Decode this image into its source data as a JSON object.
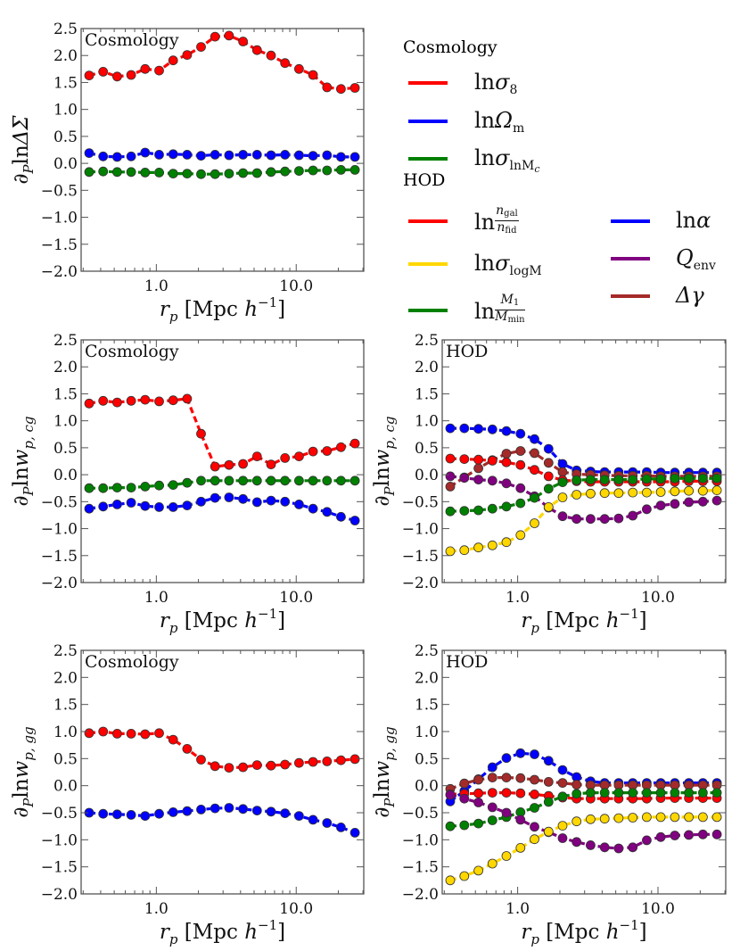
{
  "chart_data": {
    "type": "line",
    "xscale": "log",
    "x": [
      0.331,
      0.417,
      0.525,
      0.661,
      0.832,
      1.047,
      1.318,
      1.66,
      2.089,
      2.63,
      3.311,
      4.169,
      5.248,
      6.607,
      8.318,
      10.47,
      13.18,
      16.6,
      20.89,
      26.3
    ],
    "xlim": [
      0.29,
      30.4
    ],
    "ylim": [
      -2.0,
      2.5
    ],
    "xticks": [
      1.0,
      10.0
    ],
    "xtick_labels": [
      "1.0",
      "10.0"
    ],
    "yticks": [
      -2.0,
      -1.5,
      -1.0,
      -0.5,
      0.0,
      0.5,
      1.0,
      1.5,
      2.0,
      2.5
    ],
    "ytick_labels": [
      "−2.0",
      "−1.5",
      "−1.0",
      "−0.5",
      "0.0",
      "0.5",
      "1.0",
      "1.5",
      "2.0",
      "2.5"
    ],
    "xlabel": {
      "var": "r",
      "sub": "p",
      "unit": " [Mpc ",
      "unit_var": "h",
      "sup": "−1",
      "close": "]"
    },
    "grid": false,
    "legend_placement": "top-right",
    "legend": {
      "cosmology": {
        "title": "Cosmology",
        "items": [
          {
            "prefix": "ln",
            "sym": "σ",
            "sub": "8",
            "color": "#ff0000"
          },
          {
            "prefix": "ln",
            "sym": "Ω",
            "sub": "m",
            "color": "#0000ff"
          },
          {
            "prefix": "ln",
            "sym": "σ",
            "sub": "lnM",
            "subsub": "c",
            "color": "#008000"
          }
        ]
      },
      "hod": {
        "title": "HOD",
        "items": [
          {
            "prefix": "ln",
            "num_sym": "n",
            "num_sub": "gal",
            "den_sym": "n",
            "den_sub": "fid",
            "color": "#ff0000"
          },
          {
            "prefix": "ln",
            "sym": "σ",
            "sub": "logM",
            "color": "#ffd700"
          },
          {
            "prefix": "ln",
            "num_sym": "M",
            "num_sub": "1",
            "den_sym": "M",
            "den_sub": "min",
            "color": "#008000"
          },
          {
            "prefix": "ln",
            "sym": "α",
            "color": "#0000ff"
          },
          {
            "prefix": "",
            "sym": "Q",
            "sub": "env",
            "color": "#800080"
          },
          {
            "prefix": "",
            "sym": "Δγ",
            "color": "#a52a2a"
          }
        ]
      }
    },
    "panels": [
      {
        "title": "Cosmology",
        "ylabel": {
          "d": "∂",
          "sub": "P",
          "ln": "ln",
          "sym": "ΔΣ",
          "symsub": ""
        },
        "series": [
          {
            "name": "ln sigma8",
            "color": "#ff0000",
            "values": [
              1.63,
              1.7,
              1.61,
              1.64,
              1.75,
              1.72,
              1.91,
              2.01,
              2.16,
              2.35,
              2.37,
              2.26,
              2.1,
              2.0,
              1.86,
              1.75,
              1.64,
              1.41,
              1.38,
              1.4
            ]
          },
          {
            "name": "ln Omega_m",
            "color": "#0000ff",
            "values": [
              0.19,
              0.13,
              0.12,
              0.13,
              0.2,
              0.16,
              0.17,
              0.16,
              0.14,
              0.16,
              0.15,
              0.16,
              0.16,
              0.15,
              0.16,
              0.15,
              0.14,
              0.15,
              0.12,
              0.12
            ]
          },
          {
            "name": "ln sigma_lnMc",
            "color": "#008000",
            "values": [
              -0.16,
              -0.15,
              -0.16,
              -0.16,
              -0.17,
              -0.17,
              -0.19,
              -0.19,
              -0.2,
              -0.2,
              -0.19,
              -0.18,
              -0.18,
              -0.16,
              -0.15,
              -0.14,
              -0.13,
              -0.13,
              -0.12,
              -0.12
            ]
          }
        ]
      },
      {
        "title": "Cosmology",
        "ylabel": {
          "d": "∂",
          "sub": "P",
          "ln": "ln",
          "sym": "w",
          "symsub": "p, cg"
        },
        "series": [
          {
            "name": "ln sigma8",
            "color": "#ff0000",
            "values": [
              1.32,
              1.37,
              1.34,
              1.37,
              1.39,
              1.36,
              1.38,
              1.41,
              0.76,
              0.15,
              0.18,
              0.2,
              0.34,
              0.19,
              0.31,
              0.34,
              0.43,
              0.44,
              0.51,
              0.58
            ]
          },
          {
            "name": "ln sigma_lnMc",
            "color": "#008000",
            "values": [
              -0.25,
              -0.25,
              -0.24,
              -0.24,
              -0.22,
              -0.2,
              -0.19,
              -0.15,
              -0.11,
              -0.11,
              -0.11,
              -0.11,
              -0.11,
              -0.11,
              -0.11,
              -0.11,
              -0.11,
              -0.11,
              -0.11,
              -0.11
            ]
          },
          {
            "name": "ln Omega_m",
            "color": "#0000ff",
            "values": [
              -0.63,
              -0.59,
              -0.55,
              -0.52,
              -0.58,
              -0.6,
              -0.6,
              -0.57,
              -0.5,
              -0.43,
              -0.42,
              -0.45,
              -0.51,
              -0.48,
              -0.5,
              -0.55,
              -0.63,
              -0.69,
              -0.78,
              -0.85
            ]
          }
        ]
      },
      {
        "title": "HOD",
        "ylabel": {
          "d": "∂",
          "sub": "P",
          "ln": "ln",
          "sym": "w",
          "symsub": "p, cg"
        },
        "series": [
          {
            "name": "ln alpha",
            "color": "#0000ff",
            "values": [
              0.86,
              0.86,
              0.85,
              0.84,
              0.81,
              0.76,
              0.66,
              0.48,
              0.2,
              0.08,
              0.06,
              0.05,
              0.05,
              0.05,
              0.05,
              0.04,
              0.04,
              0.04,
              0.04,
              0.04
            ]
          },
          {
            "name": "Delta gamma",
            "color": "#a52a2a",
            "values": [
              -0.22,
              -0.05,
              0.12,
              0.27,
              0.39,
              0.44,
              0.4,
              0.22,
              0.05,
              0.01,
              0.0,
              -0.01,
              -0.02,
              -0.02,
              -0.02,
              -0.03,
              -0.03,
              -0.03,
              -0.03,
              -0.03
            ]
          },
          {
            "name": "ln ngal/nfid",
            "color": "#ff0000",
            "values": [
              0.3,
              0.29,
              0.28,
              0.26,
              0.23,
              0.18,
              0.09,
              -0.03,
              -0.1,
              -0.12,
              -0.13,
              -0.13,
              -0.13,
              -0.13,
              -0.13,
              -0.13,
              -0.13,
              -0.12,
              -0.12,
              -0.12
            ]
          },
          {
            "name": "Q_env",
            "color": "#800080",
            "values": [
              -0.03,
              -0.06,
              -0.09,
              -0.11,
              -0.16,
              -0.25,
              -0.4,
              -0.61,
              -0.77,
              -0.82,
              -0.82,
              -0.82,
              -0.81,
              -0.76,
              -0.64,
              -0.57,
              -0.54,
              -0.51,
              -0.5,
              -0.48
            ]
          },
          {
            "name": "ln M1/Mmin",
            "color": "#008000",
            "values": [
              -0.68,
              -0.67,
              -0.66,
              -0.63,
              -0.59,
              -0.53,
              -0.43,
              -0.26,
              -0.14,
              -0.1,
              -0.09,
              -0.09,
              -0.09,
              -0.09,
              -0.08,
              -0.08,
              -0.07,
              -0.07,
              -0.07,
              -0.07
            ]
          },
          {
            "name": "ln sigma_logM",
            "color": "#ffd700",
            "values": [
              -1.42,
              -1.4,
              -1.35,
              -1.31,
              -1.25,
              -1.12,
              -0.9,
              -0.6,
              -0.42,
              -0.37,
              -0.35,
              -0.34,
              -0.34,
              -0.33,
              -0.33,
              -0.32,
              -0.31,
              -0.3,
              -0.3,
              -0.29
            ]
          }
        ]
      },
      {
        "title": "Cosmology",
        "ylabel": {
          "d": "∂",
          "sub": "P",
          "ln": "ln",
          "sym": "w",
          "symsub": "p, gg"
        },
        "series": [
          {
            "name": "ln sigma8",
            "color": "#ff0000",
            "values": [
              0.97,
              1.0,
              0.96,
              0.96,
              0.95,
              0.97,
              0.85,
              0.68,
              0.48,
              0.36,
              0.33,
              0.34,
              0.38,
              0.37,
              0.39,
              0.42,
              0.44,
              0.45,
              0.47,
              0.49
            ]
          },
          {
            "name": "ln Omega_m",
            "color": "#0000ff",
            "values": [
              -0.5,
              -0.52,
              -0.53,
              -0.54,
              -0.56,
              -0.52,
              -0.49,
              -0.47,
              -0.44,
              -0.42,
              -0.41,
              -0.43,
              -0.46,
              -0.48,
              -0.51,
              -0.56,
              -0.63,
              -0.69,
              -0.77,
              -0.87
            ]
          }
        ]
      },
      {
        "title": "HOD",
        "ylabel": {
          "d": "∂",
          "sub": "P",
          "ln": "ln",
          "sym": "w",
          "symsub": "p, gg"
        },
        "series": [
          {
            "name": "ln alpha",
            "color": "#0000ff",
            "values": [
              -0.29,
              -0.1,
              0.12,
              0.34,
              0.51,
              0.6,
              0.58,
              0.46,
              0.29,
              0.16,
              0.08,
              0.05,
              0.05,
              0.05,
              0.05,
              0.05,
              0.05,
              0.05,
              0.05,
              0.05
            ]
          },
          {
            "name": "Delta gamma",
            "color": "#a52a2a",
            "values": [
              -0.06,
              0.04,
              0.11,
              0.15,
              0.15,
              0.14,
              0.11,
              0.07,
              0.05,
              0.02,
              0.01,
              0.01,
              0.01,
              0.01,
              0.01,
              0.01,
              0.01,
              0.01,
              0.01,
              0.01
            ]
          },
          {
            "name": "ln ngal/nfid",
            "color": "#ff0000",
            "values": [
              -0.16,
              -0.15,
              -0.14,
              -0.13,
              -0.13,
              -0.14,
              -0.16,
              -0.19,
              -0.22,
              -0.24,
              -0.24,
              -0.24,
              -0.24,
              -0.24,
              -0.24,
              -0.23,
              -0.23,
              -0.23,
              -0.23,
              -0.23
            ]
          },
          {
            "name": "ln M1/Mmin",
            "color": "#008000",
            "values": [
              -0.75,
              -0.73,
              -0.7,
              -0.64,
              -0.58,
              -0.49,
              -0.41,
              -0.3,
              -0.2,
              -0.15,
              -0.13,
              -0.13,
              -0.13,
              -0.13,
              -0.13,
              -0.13,
              -0.13,
              -0.13,
              -0.13,
              -0.13
            ]
          },
          {
            "name": "Q_env",
            "color": "#800080",
            "values": [
              -0.17,
              -0.24,
              -0.31,
              -0.4,
              -0.5,
              -0.63,
              -0.76,
              -0.86,
              -0.97,
              -1.04,
              -1.1,
              -1.14,
              -1.16,
              -1.14,
              -1.01,
              -0.95,
              -0.92,
              -0.91,
              -0.9,
              -0.9
            ]
          },
          {
            "name": "ln sigma_logM",
            "color": "#ffd700",
            "values": [
              -1.75,
              -1.67,
              -1.57,
              -1.44,
              -1.3,
              -1.15,
              -0.99,
              -0.85,
              -0.74,
              -0.66,
              -0.62,
              -0.61,
              -0.6,
              -0.59,
              -0.58,
              -0.58,
              -0.58,
              -0.58,
              -0.58,
              -0.58
            ]
          }
        ]
      }
    ]
  }
}
